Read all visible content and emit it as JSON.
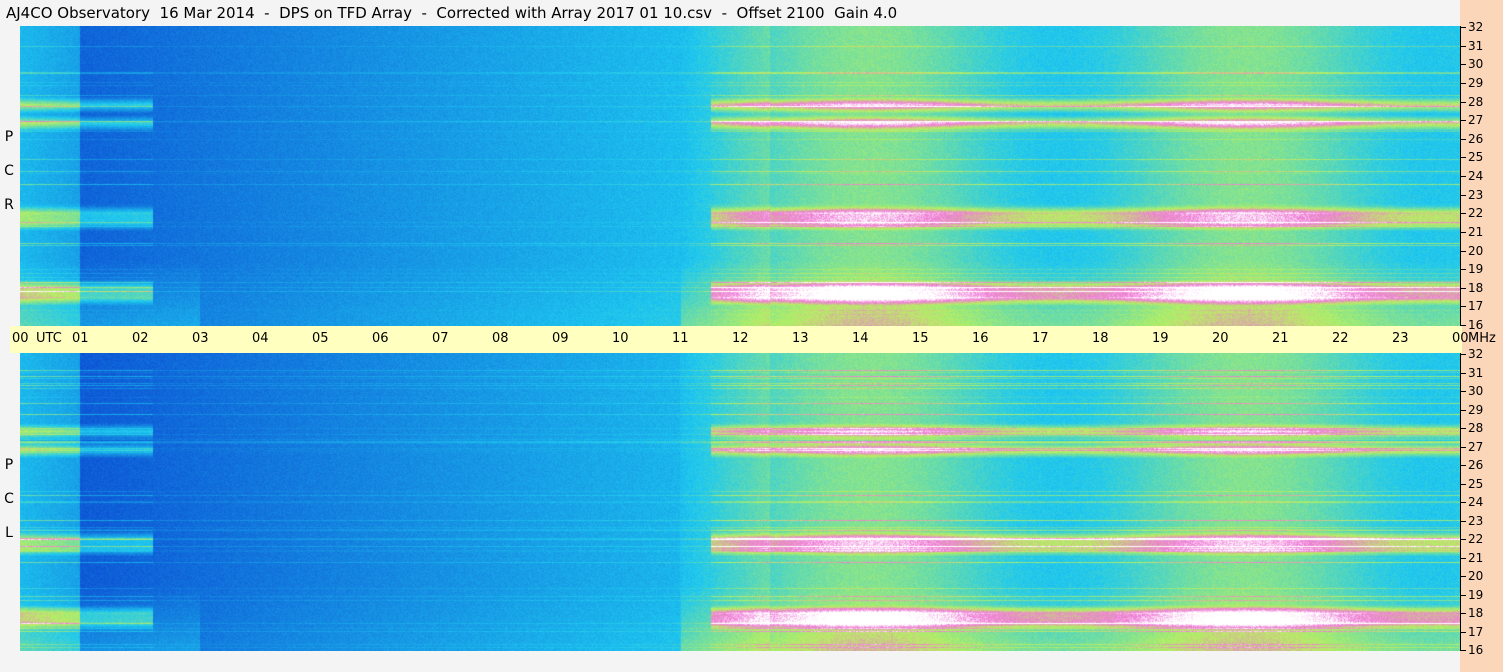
{
  "title": "AJ4CO Observatory  16 Mar 2014  -  DPS on TFD Array  -  Corrected with Array 2017 01 10.csv  -  Offset 2100  Gain 4.0",
  "chart_data": {
    "type": "heatmap",
    "panels": [
      {
        "name": "RCP",
        "label_letters": [
          "P",
          "C",
          "R"
        ]
      },
      {
        "name": "LCP",
        "label_letters": [
          "P",
          "C",
          "L"
        ]
      }
    ],
    "x_axis": {
      "unit_label": "UTC",
      "ticks": [
        "00",
        "01",
        "02",
        "03",
        "04",
        "05",
        "06",
        "07",
        "08",
        "09",
        "10",
        "11",
        "12",
        "13",
        "14",
        "15",
        "16",
        "17",
        "18",
        "19",
        "20",
        "21",
        "22",
        "23",
        "00"
      ],
      "range_hours": [
        0,
        24
      ]
    },
    "y_axis": {
      "unit_label": "MHz",
      "ticks": [
        16,
        17,
        18,
        19,
        20,
        21,
        22,
        23,
        24,
        25,
        26,
        27,
        28,
        29,
        30,
        31,
        32
      ],
      "range": [
        16,
        32
      ]
    },
    "colors": {
      "low": "#0a3fd0",
      "mid": "#1ec8f0",
      "high": "#b8f060",
      "peak": "#f07ad8",
      "saturated": "#ffffff"
    },
    "description_of_levels": {
      "quiet_period_utc": [
        1,
        11
      ],
      "active_period_utc": [
        12,
        24
      ],
      "strong_bands_mhz": [
        17.5,
        18,
        21.5,
        22,
        26.8,
        27.8
      ]
    }
  }
}
